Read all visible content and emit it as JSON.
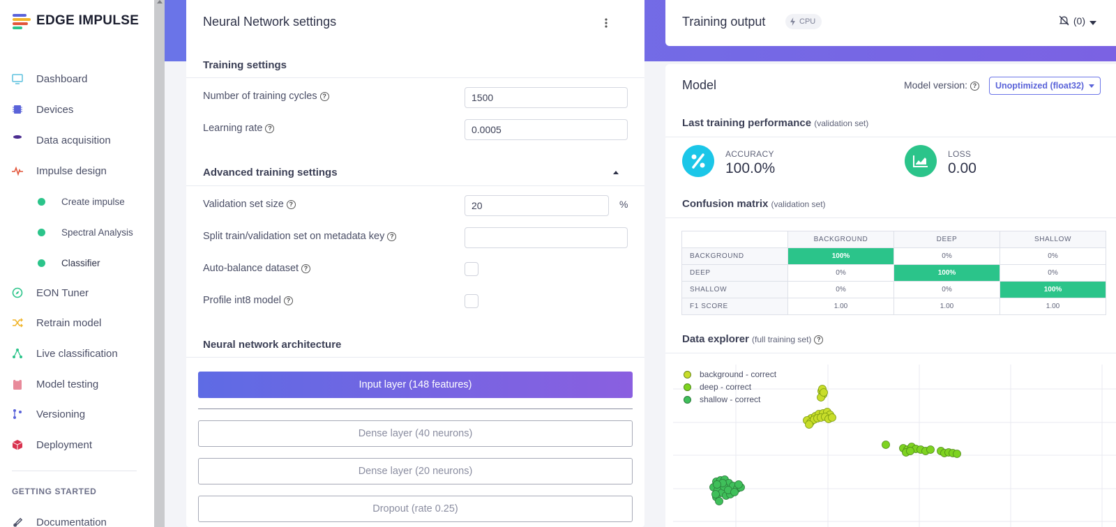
{
  "app": {
    "name": "EDGE IMPULSE"
  },
  "sidebar": {
    "items": [
      {
        "label": "Dashboard",
        "icon": "monitor-icon",
        "color": "#5bc0de"
      },
      {
        "label": "Devices",
        "icon": "chip-icon",
        "color": "#5a63d9"
      },
      {
        "label": "Data acquisition",
        "icon": "database-icon",
        "color": "#4a2b8f"
      },
      {
        "label": "Impulse design",
        "icon": "pulse-icon",
        "color": "#e2563b"
      },
      {
        "label": "Create impulse",
        "sub": true
      },
      {
        "label": "Spectral Analysis",
        "sub": true
      },
      {
        "label": "Classifier",
        "sub": true,
        "active": true
      },
      {
        "label": "EON Tuner",
        "icon": "compass-icon",
        "color": "#2bc48a"
      },
      {
        "label": "Retrain model",
        "icon": "shuffle-icon",
        "color": "#f0b429"
      },
      {
        "label": "Live classification",
        "icon": "live-icon",
        "color": "#2bc48a"
      },
      {
        "label": "Model testing",
        "icon": "clipboard-icon",
        "color": "#e88a9a"
      },
      {
        "label": "Versioning",
        "icon": "branch-icon",
        "color": "#5a63d9"
      },
      {
        "label": "Deployment",
        "icon": "package-icon",
        "color": "#d9334f"
      }
    ],
    "section_label": "GETTING STARTED",
    "docs_label": "Documentation"
  },
  "nn": {
    "title": "Neural Network settings",
    "training_title": "Training settings",
    "cycles_label": "Number of training cycles",
    "cycles_value": "1500",
    "lr_label": "Learning rate",
    "lr_value": "0.0005",
    "advanced_title": "Advanced training settings",
    "val_label": "Validation set size",
    "val_value": "20",
    "val_unit": "%",
    "split_label": "Split train/validation set on metadata key",
    "split_value": "",
    "autobalance_label": "Auto-balance dataset",
    "autobalance_checked": false,
    "int8_label": "Profile int8 model",
    "int8_checked": false,
    "arch_title": "Neural network architecture",
    "layers": [
      "Input layer (148 features)",
      "Dense layer (40 neurons)",
      "Dense layer (20 neurons)",
      "Dropout (rate 0.25)"
    ]
  },
  "training_output": {
    "title": "Training output",
    "badge": "CPU",
    "notifications": "(0)"
  },
  "model": {
    "title": "Model",
    "version_label": "Model version:",
    "version_value": "Unoptimized (float32)",
    "perf_title": "Last training performance",
    "perf_sub": "(validation set)",
    "accuracy_label": "ACCURACY",
    "accuracy_value": "100.0%",
    "loss_label": "LOSS",
    "loss_value": "0.00",
    "cm_title": "Confusion matrix",
    "cm_sub": "(validation set)",
    "confusion": {
      "columns": [
        "BACKGROUND",
        "DEEP",
        "SHALLOW"
      ],
      "rows": [
        {
          "label": "BACKGROUND",
          "cells": [
            "100%",
            "0%",
            "0%"
          ]
        },
        {
          "label": "DEEP",
          "cells": [
            "0%",
            "100%",
            "0%"
          ]
        },
        {
          "label": "SHALLOW",
          "cells": [
            "0%",
            "0%",
            "100%"
          ]
        },
        {
          "label": "F1 SCORE",
          "cells": [
            "1.00",
            "1.00",
            "1.00"
          ]
        }
      ]
    },
    "explorer_title": "Data explorer",
    "explorer_sub": "(full training set)",
    "legend": [
      {
        "label": "background - correct",
        "color": "#c8dd2a"
      },
      {
        "label": "deep - correct",
        "color": "#7ed321"
      },
      {
        "label": "shallow - correct",
        "color": "#3fbf5a"
      }
    ]
  },
  "colors": {
    "accent": "#6a74e8",
    "success": "#2bc48a",
    "accuracy": "#1bc6e8"
  }
}
